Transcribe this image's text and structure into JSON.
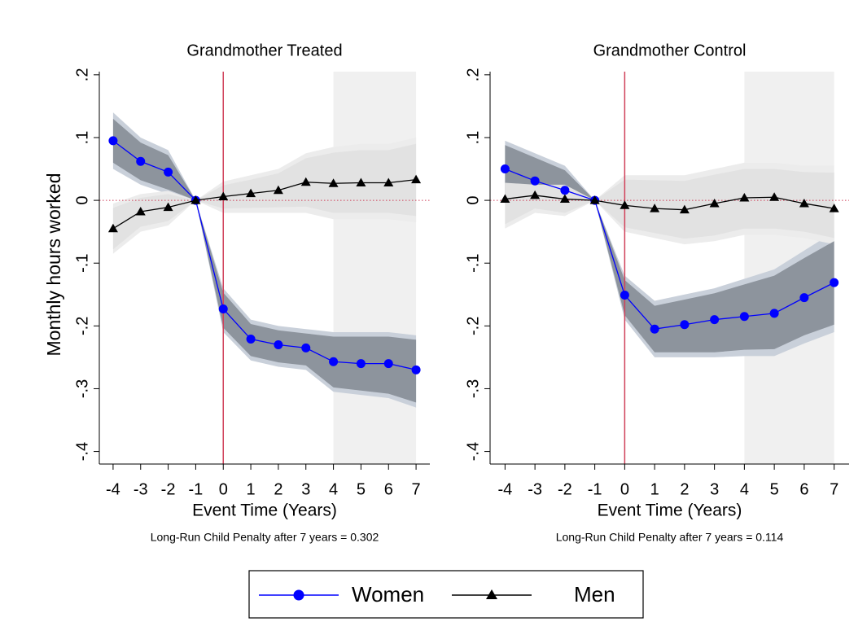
{
  "chart_data": [
    {
      "type": "line",
      "title": "Grandmother Treated",
      "x_label": "Event Time (Years)",
      "y_label": "Monthly hours worked",
      "note": "Long-Run Child Penalty after 7 years = 0.302",
      "x": [
        -4,
        -3,
        -2,
        -1,
        0,
        1,
        2,
        3,
        4,
        5,
        6,
        7
      ],
      "xlim": [
        -4.5,
        7.5
      ],
      "xticks": [
        -4,
        -3,
        -2,
        -1,
        0,
        1,
        2,
        3,
        4,
        5,
        6,
        7
      ],
      "ylim": [
        -0.42,
        0.205
      ],
      "yticks": [
        {
          "value": 0.2,
          "label": ".2"
        },
        {
          "value": 0.1,
          "label": ".1"
        },
        0,
        {
          "value": -0.1,
          "label": "-.1"
        },
        {
          "value": -0.2,
          "label": "-.2"
        },
        {
          "value": -0.3,
          "label": "-.3"
        },
        {
          "value": -0.4,
          "label": "-.4"
        }
      ],
      "vline": 0,
      "vline_color": "#d0405a",
      "hline": 0,
      "shade_x": [
        4,
        7
      ],
      "shade_color": "#f0f0f0",
      "series": [
        {
          "name": "Women",
          "color": "#0000ff",
          "marker": "circle",
          "values": [
            0.095,
            0.062,
            0.045,
            0,
            -0.173,
            -0.221,
            -0.23,
            -0.235,
            -0.257,
            -0.26,
            -0.26,
            -0.27
          ],
          "band_outer": {
            "color": "#c9d0da",
            "high": [
              0.14,
              0.1,
              0.08,
              0,
              -0.14,
              -0.19,
              -0.2,
              -0.205,
              -0.21,
              -0.21,
              -0.21,
              -0.215
            ],
            "low": [
              0.05,
              0.025,
              0.01,
              0,
              -0.21,
              -0.255,
              -0.265,
              -0.27,
              -0.305,
              -0.31,
              -0.315,
              -0.33
            ]
          },
          "band_inner": {
            "color": "#8d949d",
            "high": [
              0.13,
              0.092,
              0.072,
              0,
              -0.147,
              -0.197,
              -0.207,
              -0.212,
              -0.217,
              -0.217,
              -0.217,
              -0.222
            ],
            "low": [
              0.06,
              0.032,
              0.017,
              0,
              -0.203,
              -0.248,
              -0.258,
              -0.263,
              -0.298,
              -0.303,
              -0.308,
              -0.322
            ]
          }
        },
        {
          "name": "Men",
          "color": "#000000",
          "marker": "triangle",
          "values": [
            -0.045,
            -0.018,
            -0.011,
            0,
            0.006,
            0.011,
            0.016,
            0.029,
            0.027,
            0.028,
            0.028,
            0.033
          ],
          "band_outer": {
            "color": "#ececec",
            "high": [
              -0.005,
              0.01,
              0.015,
              0,
              0.03,
              0.04,
              0.05,
              0.075,
              0.085,
              0.09,
              0.09,
              0.1
            ],
            "low": [
              -0.085,
              -0.05,
              -0.04,
              0,
              -0.02,
              -0.02,
              -0.02,
              -0.02,
              -0.03,
              -0.03,
              -0.03,
              -0.035
            ]
          },
          "band_inner": {
            "color": "#e2e2e2",
            "high": [
              -0.012,
              0.004,
              0.01,
              0,
              0.024,
              0.033,
              0.043,
              0.067,
              0.076,
              0.08,
              0.08,
              0.09
            ],
            "low": [
              -0.078,
              -0.042,
              -0.033,
              0,
              -0.013,
              -0.012,
              -0.011,
              -0.01,
              -0.02,
              -0.02,
              -0.02,
              -0.025
            ]
          }
        }
      ]
    },
    {
      "type": "line",
      "title": "Grandmother Control",
      "x_label": "Event Time (Years)",
      "note": "Long-Run Child Penalty after 7 years = 0.114",
      "x": [
        -4,
        -3,
        -2,
        -1,
        0,
        1,
        2,
        3,
        4,
        5,
        6,
        7
      ],
      "xlim": [
        -4.5,
        7.5
      ],
      "xticks": [
        -4,
        -3,
        -2,
        -1,
        0,
        1,
        2,
        3,
        4,
        5,
        6,
        7
      ],
      "ylim": [
        -0.42,
        0.205
      ],
      "yticks": [
        {
          "value": 0.2,
          "label": ".2"
        },
        {
          "value": 0.1,
          "label": ".1"
        },
        0,
        {
          "value": -0.1,
          "label": "-.1"
        },
        {
          "value": -0.2,
          "label": "-.2"
        },
        {
          "value": -0.3,
          "label": "-.3"
        },
        {
          "value": -0.4,
          "label": "-.4"
        }
      ],
      "vline": 0,
      "vline_color": "#d0405a",
      "hline": 0,
      "shade_x": [
        4,
        7
      ],
      "shade_color": "#f0f0f0",
      "series": [
        {
          "color": "#0000ff",
          "marker": "circle",
          "values": [
            0.05,
            0.031,
            0.016,
            0,
            -0.151,
            -0.205,
            -0.198,
            -0.19,
            -0.185,
            -0.18,
            -0.155,
            -0.131
          ],
          "band_outer": {
            "color": "#c9d0da",
            "high": [
              0.095,
              0.075,
              0.055,
              0,
              -0.12,
              -0.16,
              -0.15,
              -0.14,
              -0.125,
              -0.11,
              -0.08,
              -0.05
            ],
            "low": [
              -0.005,
              -0.01,
              -0.02,
              0,
              -0.19,
              -0.25,
              -0.25,
              -0.25,
              -0.248,
              -0.248,
              -0.228,
              -0.21
            ]
          },
          "band_inner": {
            "color": "#8d949d",
            "high": [
              0.088,
              0.068,
              0.048,
              0,
              -0.127,
              -0.168,
              -0.158,
              -0.148,
              -0.134,
              -0.12,
              -0.092,
              -0.065
            ],
            "low": [
              0.002,
              -0.003,
              -0.013,
              0,
              -0.183,
              -0.242,
              -0.242,
              -0.242,
              -0.238,
              -0.237,
              -0.215,
              -0.198
            ]
          }
        },
        {
          "color": "#000000",
          "marker": "triangle",
          "values": [
            0.002,
            0.008,
            0.002,
            0,
            -0.008,
            -0.013,
            -0.015,
            -0.005,
            0.004,
            0.005,
            -0.005,
            -0.013
          ],
          "band_outer": {
            "color": "#ececec",
            "high": [
              0.035,
              0.03,
              0.03,
              0,
              0.04,
              0.04,
              0.04,
              0.05,
              0.06,
              0.06,
              0.055,
              0.055
            ],
            "low": [
              -0.045,
              -0.02,
              -0.025,
              0,
              -0.05,
              -0.06,
              -0.07,
              -0.065,
              -0.055,
              -0.055,
              -0.06,
              -0.07
            ]
          },
          "band_inner": {
            "color": "#e2e2e2",
            "high": [
              0.028,
              0.025,
              0.025,
              0,
              0.033,
              0.032,
              0.031,
              0.041,
              0.05,
              0.05,
              0.045,
              0.044
            ],
            "low": [
              -0.038,
              -0.013,
              -0.02,
              0,
              -0.043,
              -0.052,
              -0.061,
              -0.056,
              -0.045,
              -0.045,
              -0.05,
              -0.06
            ]
          }
        }
      ]
    }
  ]
}
